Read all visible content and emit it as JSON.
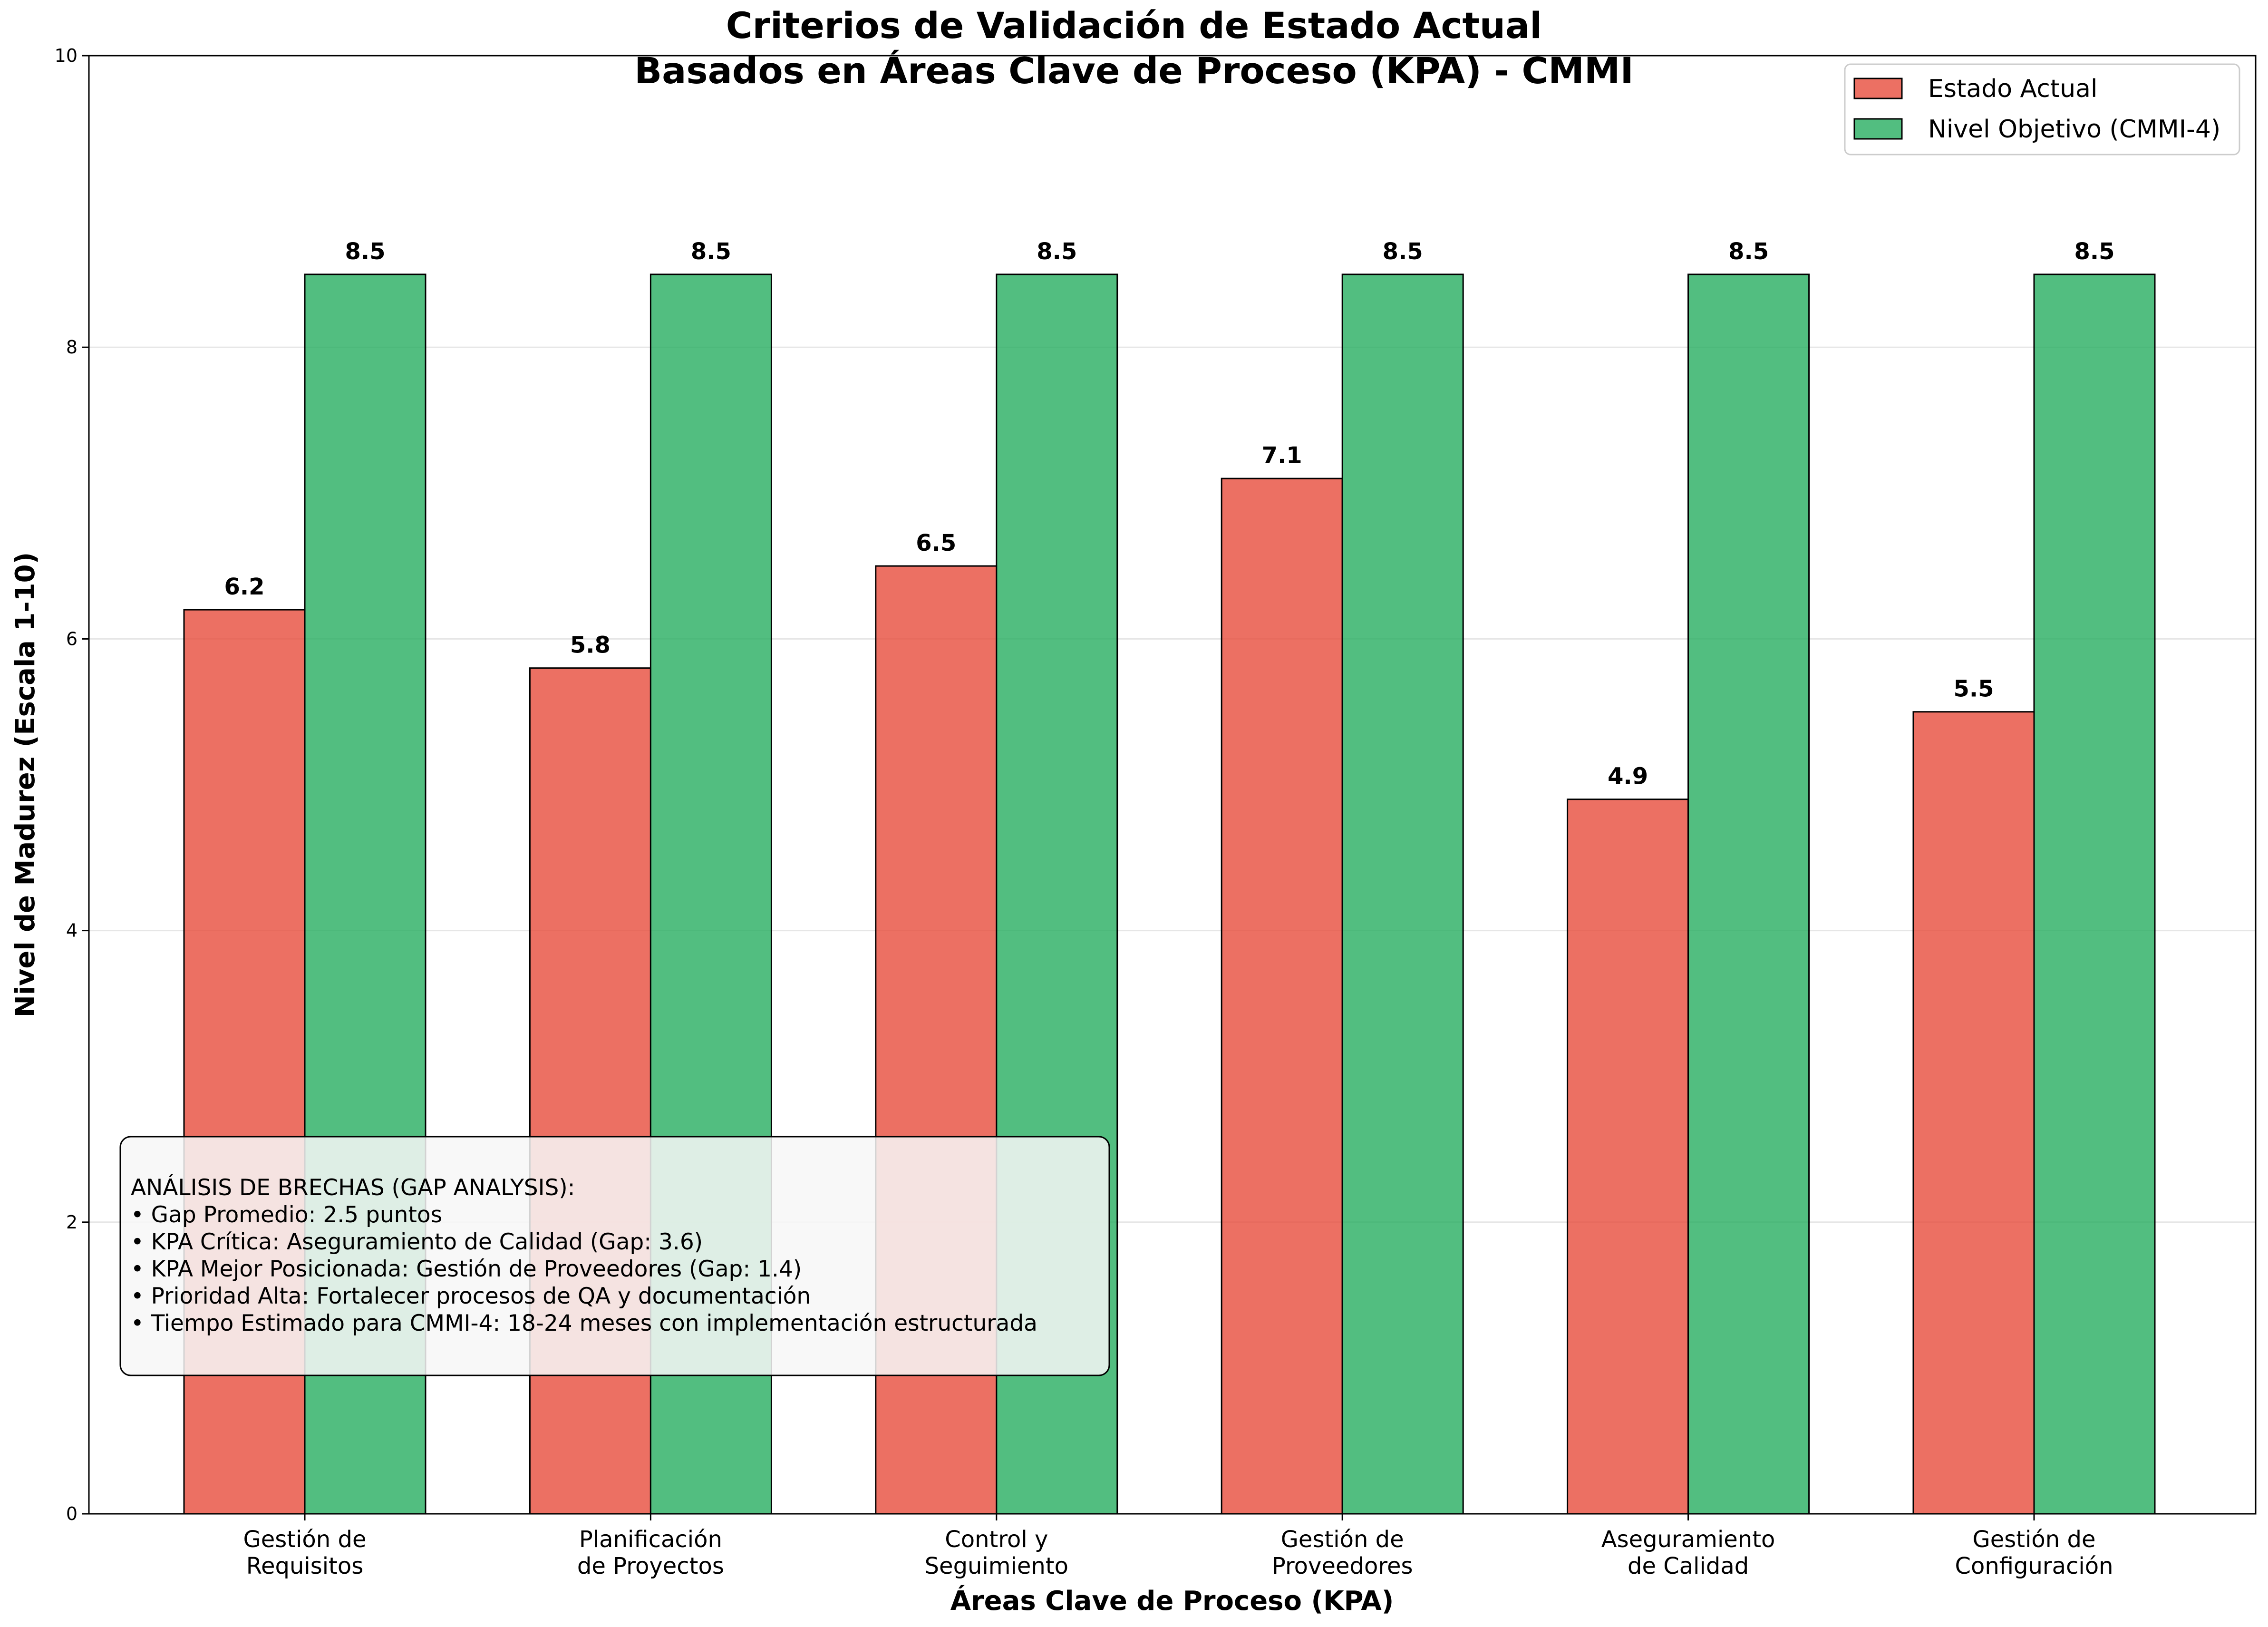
{
  "chart_data": {
    "type": "bar",
    "title": "Criterios de Validación de Estado Actual",
    "subtitle": "Basados en Áreas Clave de Proceso (KPA) - CMMI",
    "xlabel": "Áreas Clave de Proceso (KPA)",
    "ylabel": "Nivel de Madurez (Escala 1-10)",
    "ylim": [
      0,
      10
    ],
    "yticks": [
      0,
      2,
      4,
      6,
      8,
      10
    ],
    "grid": "horizontal",
    "legend_position": "top-right",
    "categories": [
      [
        "Gestión de",
        "Requisitos"
      ],
      [
        "Planificación",
        "de Proyectos"
      ],
      [
        "Control y",
        "Seguimiento"
      ],
      [
        "Gestión de",
        "Proveedores"
      ],
      [
        "Aseguramiento",
        "de Calidad"
      ],
      [
        "Gestión de",
        "Configuración"
      ]
    ],
    "series": [
      {
        "name": "Estado Actual",
        "color": "#e74c3c",
        "values": [
          6.2,
          5.8,
          6.5,
          7.1,
          4.9,
          5.5
        ]
      },
      {
        "name": "Nivel Objetivo (CMMI-4)",
        "color": "#27ae60",
        "values": [
          8.5,
          8.5,
          8.5,
          8.5,
          8.5,
          8.5
        ]
      }
    ],
    "annotation": {
      "lines": [
        "ANÁLISIS DE BRECHAS (GAP ANALYSIS):",
        "• Gap Promedio: 2.5 puntos",
        "• KPA Crítica: Aseguramiento de Calidad (Gap: 3.6)",
        "• KPA Mejor Posicionada: Gestión de Proveedores (Gap: 1.4)",
        "• Prioridad Alta: Fortalecer procesos de QA y documentación",
        "• Tiempo Estimado para CMMI-4: 18-24 meses con implementación estructurada"
      ]
    }
  }
}
